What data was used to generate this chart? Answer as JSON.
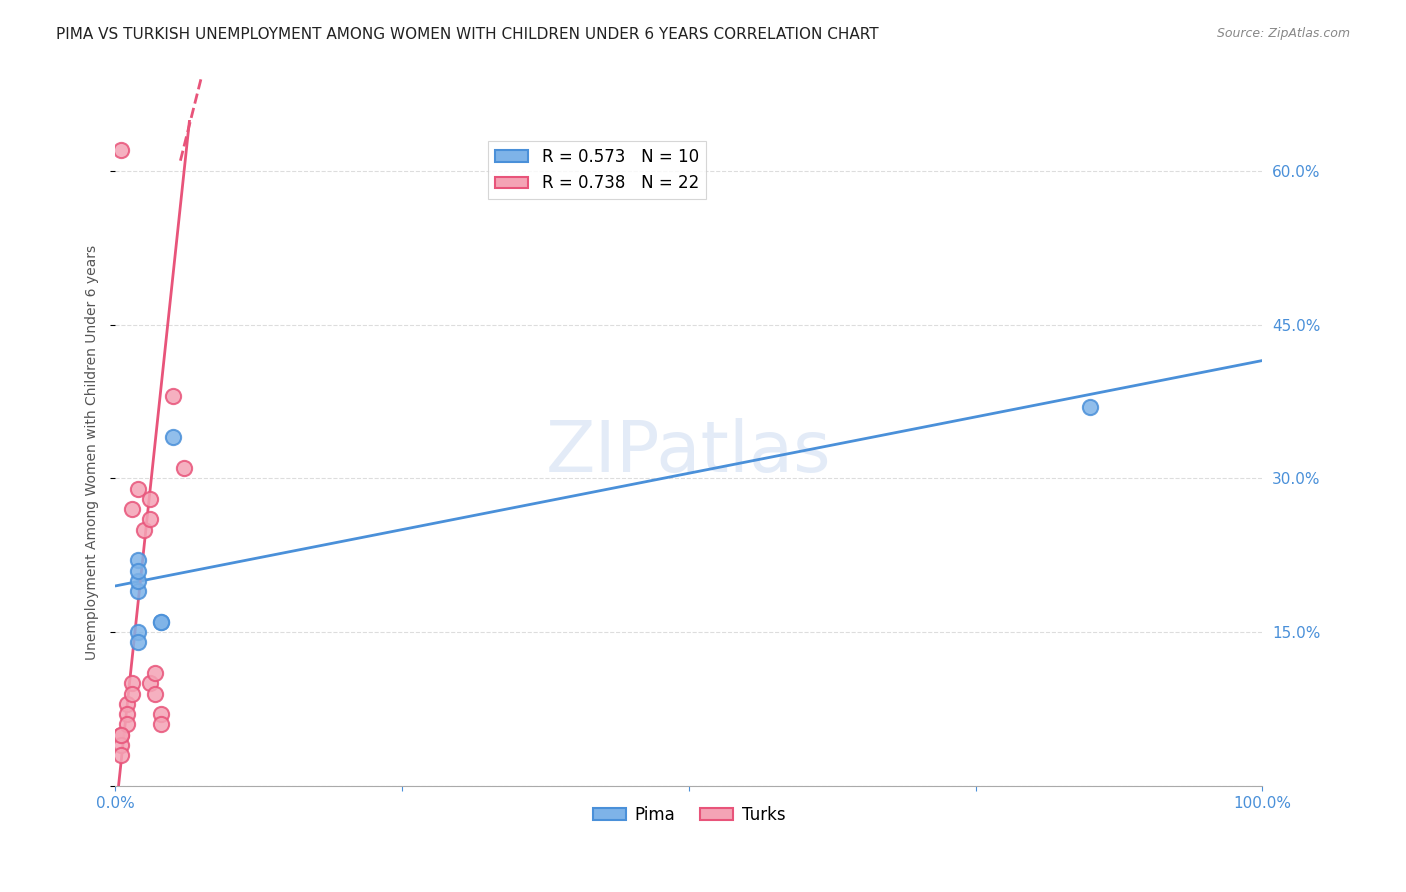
{
  "title": "PIMA VS TURKISH UNEMPLOYMENT AMONG WOMEN WITH CHILDREN UNDER 6 YEARS CORRELATION CHART",
  "source": "Source: ZipAtlas.com",
  "ylabel": "Unemployment Among Women with Children Under 6 years",
  "xlabel": "",
  "xlim": [
    0.0,
    1.0
  ],
  "ylim": [
    0.0,
    0.65
  ],
  "xticks": [
    0.0,
    0.25,
    0.5,
    0.75,
    1.0
  ],
  "xtick_labels": [
    "0.0%",
    "",
    "",
    "",
    "100.0%"
  ],
  "yticks": [
    0.0,
    0.15,
    0.3,
    0.45,
    0.6
  ],
  "ytick_labels": [
    "",
    "15.0%",
    "30.0%",
    "45.0%",
    "60.0%"
  ],
  "pima_color": "#7EB3E8",
  "turks_color": "#F4A3B5",
  "pima_line_color": "#4A90D9",
  "turks_line_color": "#E8547A",
  "background_color": "#FFFFFF",
  "grid_color": "#DDDDDD",
  "legend_r_pima": "R = 0.573",
  "legend_n_pima": "N = 10",
  "legend_r_turks": "R = 0.738",
  "legend_n_turks": "N = 22",
  "pima_label": "Pima",
  "turks_label": "Turks",
  "pima_x": [
    0.02,
    0.02,
    0.05,
    0.02,
    0.04,
    0.04,
    0.02,
    0.02,
    0.85,
    0.02
  ],
  "pima_y": [
    0.22,
    0.19,
    0.34,
    0.15,
    0.16,
    0.16,
    0.2,
    0.14,
    0.37,
    0.21
  ],
  "turks_x": [
    0.005,
    0.005,
    0.005,
    0.01,
    0.01,
    0.01,
    0.015,
    0.015,
    0.015,
    0.02,
    0.025,
    0.03,
    0.03,
    0.03,
    0.035,
    0.035,
    0.04,
    0.04,
    0.05,
    0.06,
    0.005,
    0.005
  ],
  "turks_y": [
    0.62,
    0.05,
    0.04,
    0.08,
    0.07,
    0.06,
    0.1,
    0.09,
    0.27,
    0.29,
    0.25,
    0.26,
    0.28,
    0.1,
    0.09,
    0.11,
    0.07,
    0.06,
    0.38,
    0.31,
    0.05,
    0.03
  ],
  "pima_trend_x": [
    0.0,
    1.0
  ],
  "pima_trend_y": [
    0.195,
    0.415
  ],
  "turks_slope": 10.5,
  "turks_intercept": -0.03,
  "title_fontsize": 11,
  "axis_label_fontsize": 10,
  "tick_fontsize": 11,
  "legend_fontsize": 12,
  "marker_size": 120,
  "marker_linewidth": 1.5,
  "title_color": "#222222",
  "tick_color": "#4A90D9"
}
